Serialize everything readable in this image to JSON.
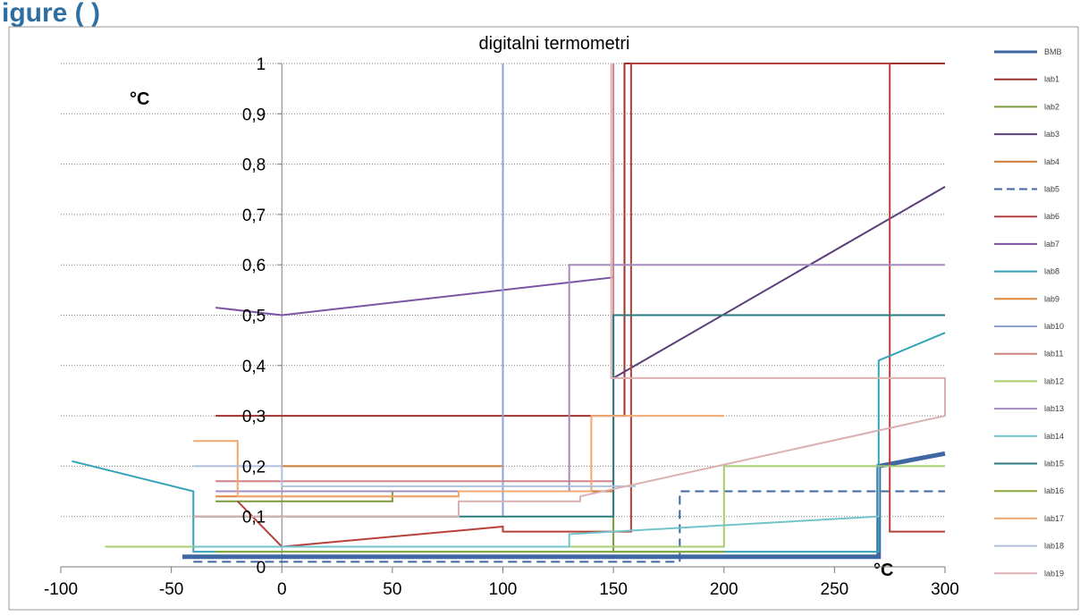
{
  "header_fragment": "igure       (                  )",
  "chart_data": {
    "type": "line",
    "title": "digitalni termometri",
    "xlabel": "°C",
    "ylabel": "°C",
    "xlim": [
      -100,
      300
    ],
    "ylim": [
      0,
      1
    ],
    "x_ticks": [
      -100,
      -50,
      0,
      50,
      100,
      150,
      200,
      250,
      300
    ],
    "x_tick_labels": [
      "-100",
      "-50",
      "0",
      "50",
      "100",
      "150",
      "200",
      "250",
      "300"
    ],
    "y_ticks": [
      0,
      0.1,
      0.2,
      0.3,
      0.4,
      0.5,
      0.6,
      0.7,
      0.8,
      0.9,
      1
    ],
    "y_tick_labels": [
      "0",
      "0,1",
      "0,2",
      "0,3",
      "0,4",
      "0,5",
      "0,6",
      "0,7",
      "0,8",
      "0,9",
      "1"
    ],
    "grid": "horizontal dotted",
    "legend_position": "right",
    "series": [
      {
        "name": "BMB",
        "color": "#3f67a3",
        "width": 5,
        "dash": "",
        "points": [
          [
            -45,
            0.02
          ],
          [
            270,
            0.02
          ],
          [
            270,
            0.2
          ],
          [
            300,
            0.225
          ]
        ]
      },
      {
        "name": "lab1",
        "color": "#a0322e",
        "width": 2,
        "dash": "",
        "points": [
          [
            -30,
            0.3
          ],
          [
            155,
            0.3
          ],
          [
            155,
            1
          ],
          [
            300,
            1
          ]
        ]
      },
      {
        "name": "lab2",
        "color": "#7a9a3a",
        "width": 2,
        "dash": "",
        "points": [
          [
            -30,
            0.13
          ],
          [
            50,
            0.13
          ],
          [
            50,
            0.15
          ],
          [
            150,
            0.15
          ],
          [
            150,
            0.03
          ],
          [
            200,
            0.03
          ]
        ]
      },
      {
        "name": "lab3",
        "color": "#5a3d7a",
        "width": 2,
        "dash": "",
        "points": [
          [
            150,
            0.375
          ],
          [
            300,
            0.755
          ]
        ]
      },
      {
        "name": "lab4",
        "color": "#cc7a33",
        "width": 2,
        "dash": "",
        "points": [
          [
            0,
            0.2
          ],
          [
            100,
            0.2
          ],
          [
            100,
            0.15
          ],
          [
            150,
            0.15
          ],
          [
            150,
            0.5
          ]
        ]
      },
      {
        "name": "lab5",
        "color": "#3f67a3",
        "width": 2,
        "dash": "10,6",
        "points": [
          [
            -40,
            0.01
          ],
          [
            180,
            0.01
          ],
          [
            180,
            0.15
          ],
          [
            300,
            0.15
          ]
        ]
      },
      {
        "name": "lab6",
        "color": "#b8403a",
        "width": 2,
        "dash": "",
        "points": [
          [
            -20,
            0.13
          ],
          [
            0,
            0.04
          ],
          [
            100,
            0.08
          ],
          [
            100,
            0.07
          ],
          [
            158,
            0.07
          ],
          [
            158,
            1
          ],
          [
            275,
            1
          ],
          [
            275,
            0.07
          ],
          [
            300,
            0.07
          ]
        ]
      },
      {
        "name": "lab7",
        "color": "#7b55a3",
        "width": 2,
        "dash": "",
        "points": [
          [
            -30,
            0.515
          ],
          [
            0,
            0.5
          ],
          [
            150,
            0.575
          ]
        ]
      },
      {
        "name": "lab8",
        "color": "#33a3b8",
        "width": 2,
        "dash": "",
        "points": [
          [
            -95,
            0.21
          ],
          [
            -40,
            0.15
          ],
          [
            -40,
            0.03
          ],
          [
            270,
            0.03
          ],
          [
            270,
            0.41
          ],
          [
            300,
            0.465
          ]
        ]
      },
      {
        "name": "lab9",
        "color": "#e0853a",
        "width": 2,
        "dash": "",
        "points": [
          [
            -30,
            0.14
          ],
          [
            80,
            0.14
          ],
          [
            80,
            0.15
          ],
          [
            140,
            0.15
          ]
        ]
      },
      {
        "name": "lab10",
        "color": "#8fa3d8",
        "width": 2,
        "dash": "",
        "points": [
          [
            100,
            0.1
          ],
          [
            100,
            1
          ]
        ]
      },
      {
        "name": "lab11",
        "color": "#d08585",
        "width": 2,
        "dash": "",
        "points": [
          [
            -30,
            0.17
          ],
          [
            150,
            0.17
          ],
          [
            150,
            1
          ]
        ]
      },
      {
        "name": "lab12",
        "color": "#a8cc70",
        "width": 2,
        "dash": "",
        "points": [
          [
            -80,
            0.04
          ],
          [
            200,
            0.04
          ],
          [
            200,
            0.2
          ],
          [
            300,
            0.2
          ]
        ]
      },
      {
        "name": "lab13",
        "color": "#a58cc0",
        "width": 2,
        "dash": "",
        "points": [
          [
            -30,
            0.15
          ],
          [
            130,
            0.15
          ],
          [
            130,
            0.6
          ],
          [
            300,
            0.6
          ]
        ]
      },
      {
        "name": "lab14",
        "color": "#70c4cc",
        "width": 2,
        "dash": "",
        "points": [
          [
            -40,
            0.04
          ],
          [
            130,
            0.04
          ],
          [
            130,
            0.065
          ],
          [
            270,
            0.1
          ],
          [
            270,
            0.2
          ]
        ]
      },
      {
        "name": "lab15",
        "color": "#2a7a80",
        "width": 2,
        "dash": "",
        "points": [
          [
            -40,
            0.1
          ],
          [
            150,
            0.1
          ],
          [
            150,
            0.5
          ],
          [
            300,
            0.5
          ]
        ]
      },
      {
        "name": "lab16",
        "color": "#8aaa3a",
        "width": 2,
        "dash": "",
        "points": [
          [
            -30,
            0.03
          ],
          [
            200,
            0.03
          ]
        ]
      },
      {
        "name": "lab17",
        "color": "#f0a870",
        "width": 2,
        "dash": "",
        "points": [
          [
            -40,
            0.25
          ],
          [
            -20,
            0.25
          ],
          [
            -20,
            0.14
          ],
          [
            80,
            0.14
          ],
          [
            80,
            0.15
          ],
          [
            140,
            0.15
          ],
          [
            140,
            0.3
          ],
          [
            200,
            0.3
          ]
        ]
      },
      {
        "name": "lab18",
        "color": "#b0c0dd",
        "width": 2,
        "dash": "",
        "points": [
          [
            -40,
            0.2
          ],
          [
            0,
            0.2
          ],
          [
            0,
            0.16
          ],
          [
            160,
            0.16
          ]
        ]
      },
      {
        "name": "lab19",
        "color": "#dcb0b0",
        "width": 2,
        "dash": "",
        "points": [
          [
            -40,
            0.1
          ],
          [
            80,
            0.1
          ],
          [
            80,
            0.13
          ],
          [
            135,
            0.13
          ],
          [
            135,
            0.14
          ],
          [
            300,
            0.3
          ],
          [
            300,
            0.375
          ],
          [
            149,
            0.375
          ],
          [
            149,
            1
          ]
        ]
      }
    ]
  }
}
